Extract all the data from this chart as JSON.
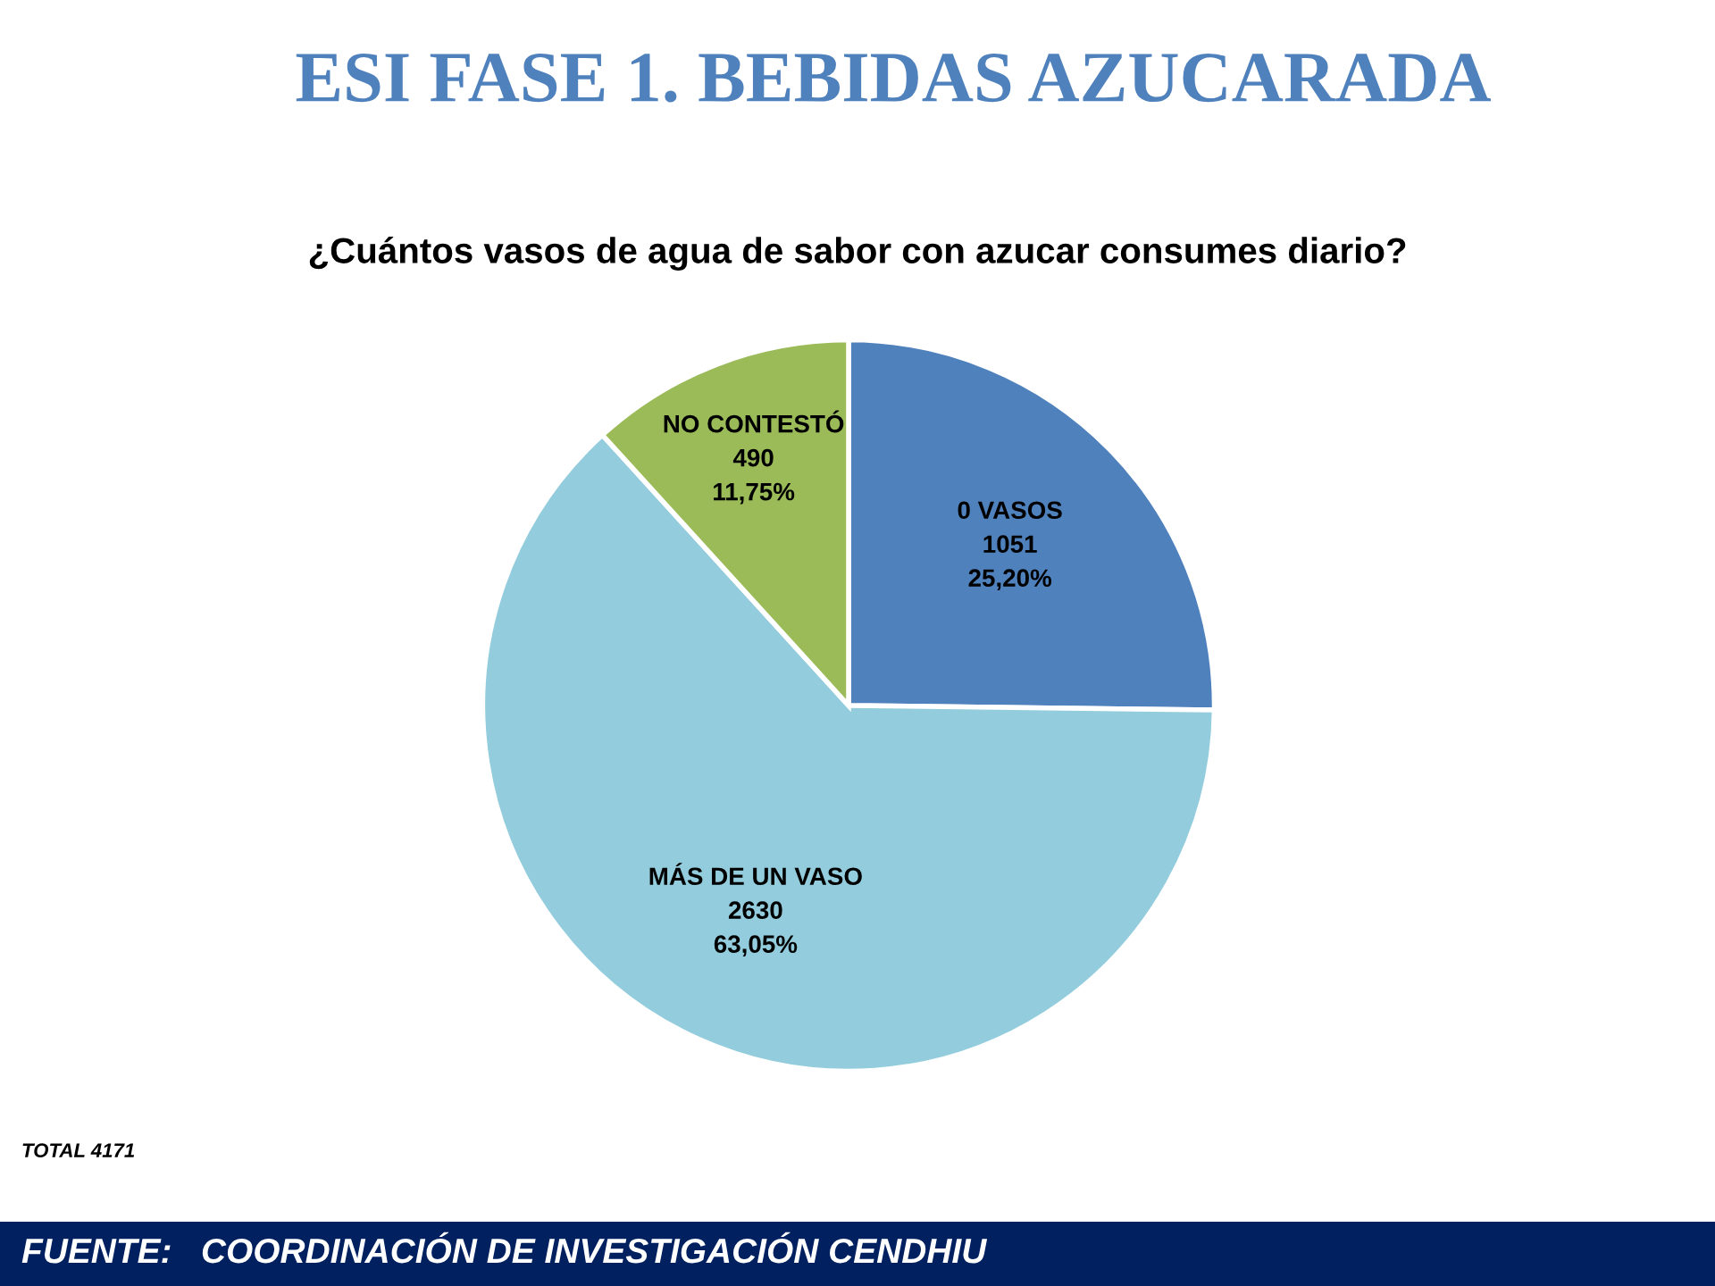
{
  "chart_data": {
    "type": "pie",
    "title": "ESI FASE 1. BEBIDAS AZUCARADA",
    "subtitle": "¿Cuántos vasos de agua de sabor con azucar consumes diario?",
    "categories": [
      "0 VASOS",
      "MÁS DE UN VASO",
      "NO CONTESTÓ"
    ],
    "values": [
      1051,
      2630,
      490
    ],
    "value_labels": [
      "1051\n25,20%",
      "2630\n63,05%",
      "490\n11,75%"
    ],
    "colors": [
      "#4f81bd",
      "#93cddd",
      "#9bbb59"
    ],
    "annotations": [
      "TOTAL 4171",
      "FUENTE:   COORDINACIÓN DE INVESTIGACIÓN CENDHIU"
    ]
  }
}
